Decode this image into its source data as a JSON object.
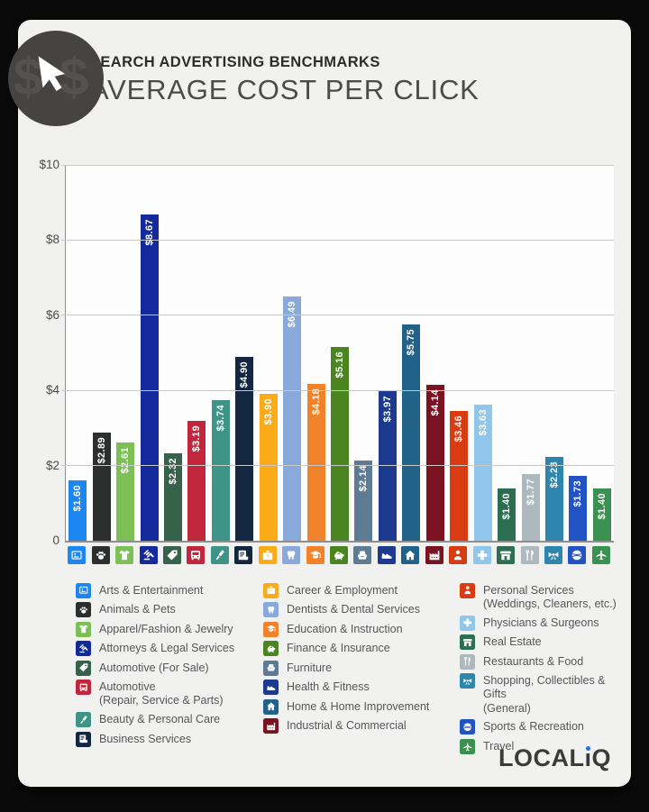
{
  "header": {
    "kicker": "SEARCH ADVERTISING BENCHMARKS",
    "title": "AVERAGE COST PER CLICK"
  },
  "badge": {
    "left_symbol": "$",
    "right_symbol": "$",
    "cursor": "cursor-icon"
  },
  "footer": {
    "logo": {
      "text": "LOCALiQ",
      "prefix": "LOCAL",
      "suffix": "Q",
      "dot_color": "#1f6ff0"
    }
  },
  "theme": {
    "page_background": "#0a0a0a",
    "card_background": "#f1f1ef",
    "plot_background": "#fdfdfd",
    "gridline_color": "#c9c9c9",
    "axis_color": "#8f8f8f",
    "text_color": "#4b4b4b",
    "legend_text_color": "#54565a"
  },
  "chart_data": {
    "type": "bar",
    "title": "Average Cost Per Click",
    "subtitle": "Search Advertising Benchmarks",
    "xlabel": "",
    "ylabel": "",
    "ylim": [
      0,
      10
    ],
    "grid": true,
    "legend_position": "bottom",
    "yticks": [
      {
        "label": "$10",
        "value": 10
      },
      {
        "label": "$8",
        "value": 8
      },
      {
        "label": "$6",
        "value": 6
      },
      {
        "label": "$4",
        "value": 4
      },
      {
        "label": "$2",
        "value": 2
      },
      {
        "label": "0",
        "value": 0
      }
    ],
    "series": [
      {
        "label": "Arts & Entertainment",
        "value": 1.6,
        "value_label": "$1.60",
        "color": "#1e86f0",
        "icon": "image-icon"
      },
      {
        "label": "Animals & Pets",
        "value": 2.89,
        "value_label": "$2.89",
        "color": "#2d2f2e",
        "icon": "paw-icon"
      },
      {
        "label": "Apparel/Fashion & Jewelry",
        "value": 2.61,
        "value_label": "$2.61",
        "color": "#7cc055",
        "icon": "tshirt-icon"
      },
      {
        "label": "Attorneys & Legal Services",
        "value": 8.67,
        "value_label": "$8.67",
        "color": "#13299c",
        "icon": "gavel-icon"
      },
      {
        "label": "Automotive (For Sale)",
        "value": 2.32,
        "value_label": "$2.32",
        "color": "#36614a",
        "icon": "price-tag-icon"
      },
      {
        "label": "Automotive (Repair, Service & Parts)",
        "legend_label": "Automotive\n(Repair, Service & Parts)",
        "value": 3.19,
        "value_label": "$3.19",
        "color": "#c2263c",
        "icon": "car-icon"
      },
      {
        "label": "Beauty & Personal Care",
        "value": 3.74,
        "value_label": "$3.74",
        "color": "#3f9488",
        "icon": "brush-icon"
      },
      {
        "label": "Business Services",
        "value": 4.9,
        "value_label": "$4.90",
        "color": "#132840",
        "icon": "document-icon"
      },
      {
        "label": "Career & Employment",
        "value": 3.9,
        "value_label": "$3.90",
        "color": "#fbab18",
        "icon": "briefcase-icon"
      },
      {
        "label": "Dentists & Dental Services",
        "value": 6.49,
        "value_label": "$6.49",
        "color": "#88a9d9",
        "icon": "tooth-icon"
      },
      {
        "label": "Education & Instruction",
        "value": 4.18,
        "value_label": "$4.18",
        "color": "#f1822a",
        "icon": "graduation-cap-icon"
      },
      {
        "label": "Finance & Insurance",
        "value": 5.16,
        "value_label": "$5.16",
        "color": "#4a8522",
        "icon": "piggy-bank-icon"
      },
      {
        "label": "Furniture",
        "value": 2.14,
        "value_label": "$2.14",
        "color": "#5d7b93",
        "icon": "armchair-icon"
      },
      {
        "label": "Health & Fitness",
        "value": 3.97,
        "value_label": "$3.97",
        "color": "#1d3a8f",
        "icon": "sneaker-icon"
      },
      {
        "label": "Home & Home Improvement",
        "value": 5.75,
        "value_label": "$5.75",
        "color": "#226288",
        "icon": "house-icon"
      },
      {
        "label": "Industrial & Commercial",
        "value": 4.14,
        "value_label": "$4.14",
        "color": "#7b1222",
        "icon": "factory-icon"
      },
      {
        "label": "Personal Services (Weddings, Cleaners, etc.)",
        "legend_label": "Personal Services\n(Weddings, Cleaners, etc.)",
        "value": 3.46,
        "value_label": "$3.46",
        "color": "#d93c12",
        "icon": "person-icon"
      },
      {
        "label": "Physicians & Surgeons",
        "value": 3.63,
        "value_label": "$3.63",
        "color": "#8fc6ea",
        "icon": "medical-cross-icon"
      },
      {
        "label": "Real Estate",
        "value": 1.4,
        "value_label": "$1.40",
        "color": "#2b6e52",
        "icon": "building-icon"
      },
      {
        "label": "Restaurants & Food",
        "value": 1.77,
        "value_label": "$1.77",
        "color": "#aeb9bd",
        "icon": "utensils-icon"
      },
      {
        "label": "Shopping, Collectibles & Gifts (General)",
        "legend_label": "Shopping, Collectibles & Gifts\n(General)",
        "value": 2.23,
        "value_label": "$2.23",
        "color": "#2e85ad",
        "icon": "gift-bow-icon"
      },
      {
        "label": "Sports & Recreation",
        "value": 1.73,
        "value_label": "$1.73",
        "color": "#2153c5",
        "icon": "ball-icon"
      },
      {
        "label": "Travel",
        "value": 1.4,
        "value_label": "$1.40",
        "color": "#3a9150",
        "icon": "plane-icon"
      }
    ]
  },
  "legend": {
    "column_sizes": [
      8,
      8,
      7
    ]
  }
}
